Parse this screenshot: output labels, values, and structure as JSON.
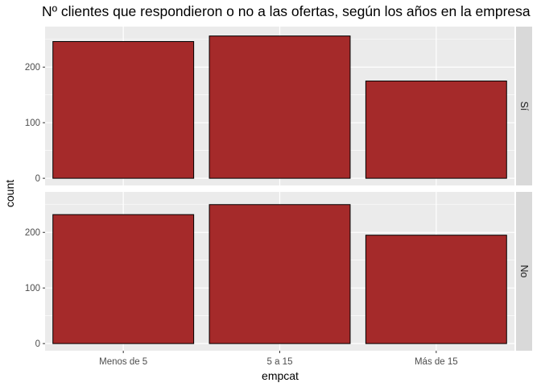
{
  "chart_data": {
    "type": "bar",
    "title": "Nº clientes que respondieron o no a las ofertas, según los años en la empresa",
    "xlabel": "empcat",
    "ylabel": "count",
    "categories": [
      "Menos de 5",
      "5 a 15",
      "Más de 15"
    ],
    "facets": [
      {
        "strip": "Sí",
        "values": [
          246,
          256,
          175
        ]
      },
      {
        "strip": "No",
        "values": [
          232,
          250,
          195
        ]
      }
    ],
    "ylim": [
      0,
      260
    ],
    "yticks": [
      0,
      100,
      200
    ],
    "grid": true,
    "bar_fill": "#a52a2a",
    "bar_stroke": "#000000",
    "panel_bg": "#ebebeb",
    "strip_bg": "#d9d9d9"
  }
}
